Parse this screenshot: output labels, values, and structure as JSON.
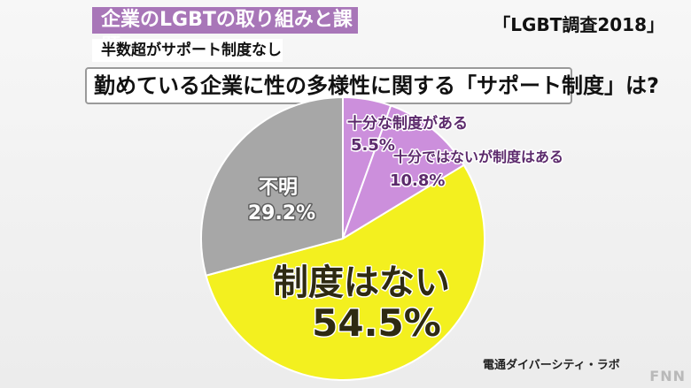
{
  "header": {
    "title": "企業のLGBTの取り組みと課題",
    "survey_tag": "「LGBT調査2018」",
    "subtitle": "半数超がサポート制度なし",
    "question": "勤めている企業に性の多様性に関する「サポート制度」は?"
  },
  "source": "電通ダイバーシティ・ラボ",
  "brand": "FNN",
  "chart_data": {
    "type": "pie",
    "title": "勤めている企業に性の多様性に関する「サポート制度」は?",
    "slices": [
      {
        "label": "十分な制度がある",
        "value": 5.5,
        "value_text": "5.5%",
        "color": "#cc8fdc"
      },
      {
        "label": "十分ではないが制度はある",
        "value": 10.8,
        "value_text": "10.8%",
        "color": "#cc8fdc"
      },
      {
        "label": "制度はない",
        "value": 54.5,
        "value_text": "54.5%",
        "color": "#f3f01f"
      },
      {
        "label": "不明",
        "value": 29.2,
        "value_text": "29.2%",
        "color": "#a7a7a7"
      }
    ],
    "start": "12 o'clock",
    "direction": "clockwise"
  }
}
